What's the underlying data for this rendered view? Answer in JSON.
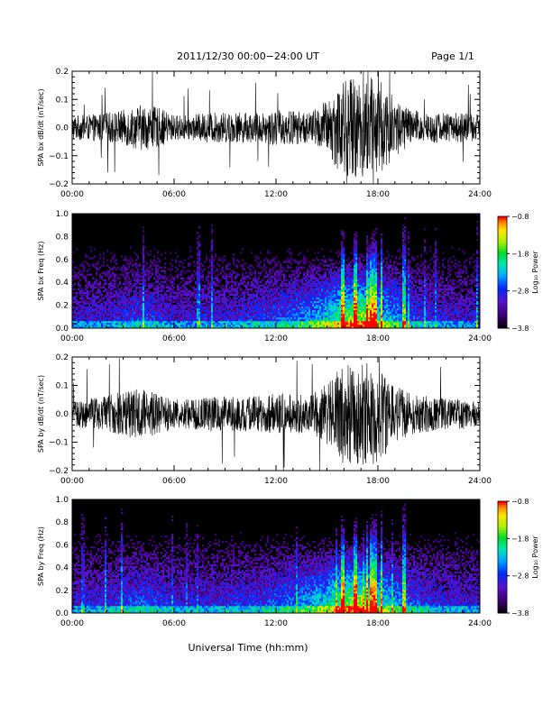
{
  "header": {
    "title": "2011/12/30  00:00−24:00 UT",
    "page": "Page 1/1"
  },
  "footer": {
    "xlabel": "Universal Time (hh:mm)"
  },
  "chart_data": [
    {
      "type": "line",
      "panel": "bx-dbdt",
      "ylabel": "SPA bx dB/dt (nT/sec)",
      "xlim": [
        "00:00",
        "24:00"
      ],
      "ylim": [
        -0.2,
        0.2
      ],
      "x_ticks": [
        "00:00",
        "06:00",
        "12:00",
        "18:00",
        "24:00"
      ],
      "y_ticks": [
        "0.2",
        "0.1",
        "0.0",
        "−0.1",
        "−0.2"
      ],
      "series": [
        {
          "x_hours": [
            0,
            1,
            2,
            3,
            4,
            5,
            6,
            7,
            8,
            9,
            10,
            11,
            12,
            13,
            14,
            15,
            16,
            17,
            18,
            19,
            20,
            21,
            22,
            23,
            24
          ],
          "amplitude": [
            0.05,
            0.05,
            0.06,
            0.07,
            0.09,
            0.08,
            0.05,
            0.05,
            0.06,
            0.06,
            0.06,
            0.06,
            0.07,
            0.07,
            0.06,
            0.11,
            0.2,
            0.2,
            0.2,
            0.12,
            0.07,
            0.06,
            0.06,
            0.06,
            0.05
          ],
          "color": "#000000"
        }
      ]
    },
    {
      "type": "heatmap",
      "panel": "bx-spectrogram",
      "ylabel": "SPA bx Freq (Hz)",
      "xlim": [
        "00:00",
        "24:00"
      ],
      "ylim": [
        0.0,
        1.0
      ],
      "x_ticks": [
        "00:00",
        "06:00",
        "12:00",
        "18:00",
        "24:00"
      ],
      "y_ticks": [
        "1.0",
        "0.8",
        "0.6",
        "0.4",
        "0.2",
        "0.0"
      ],
      "colorbar": {
        "label": "Log₁₀ Power",
        "range": [
          -3.8,
          -0.8
        ],
        "ticks": [
          "−0.8",
          "−1.8",
          "−2.8",
          "−3.8"
        ]
      },
      "activity_by_hour": [
        0.3,
        0.3,
        0.32,
        0.38,
        0.42,
        0.38,
        0.3,
        0.3,
        0.33,
        0.33,
        0.35,
        0.38,
        0.42,
        0.48,
        0.56,
        0.68,
        0.85,
        0.95,
        0.72,
        0.55,
        0.42,
        0.35,
        0.32,
        0.3,
        0.3
      ]
    },
    {
      "type": "line",
      "panel": "by-dbdt",
      "ylabel": "SPA by dB/dt (nT/sec)",
      "xlim": [
        "00:00",
        "24:00"
      ],
      "ylim": [
        -0.2,
        0.2
      ],
      "x_ticks": [
        "00:00",
        "06:00",
        "12:00",
        "18:00",
        "24:00"
      ],
      "y_ticks": [
        "0.2",
        "0.1",
        "0.0",
        "−0.1",
        "−0.2"
      ],
      "series": [
        {
          "x_hours": [
            0,
            1,
            2,
            3,
            4,
            5,
            6,
            7,
            8,
            9,
            10,
            11,
            12,
            13,
            14,
            15,
            16,
            17,
            18,
            19,
            20,
            21,
            22,
            23,
            24
          ],
          "amplitude": [
            0.05,
            0.06,
            0.07,
            0.09,
            0.1,
            0.08,
            0.06,
            0.06,
            0.07,
            0.07,
            0.07,
            0.07,
            0.08,
            0.08,
            0.07,
            0.12,
            0.2,
            0.2,
            0.2,
            0.12,
            0.08,
            0.07,
            0.06,
            0.06,
            0.05
          ],
          "color": "#000000"
        }
      ]
    },
    {
      "type": "heatmap",
      "panel": "by-spectrogram",
      "ylabel": "SPA by Freq (Hz)",
      "xlim": [
        "00:00",
        "24:00"
      ],
      "ylim": [
        0.0,
        1.0
      ],
      "x_ticks": [
        "00:00",
        "06:00",
        "12:00",
        "18:00",
        "24:00"
      ],
      "y_ticks": [
        "1.0",
        "0.8",
        "0.6",
        "0.4",
        "0.2",
        "0.0"
      ],
      "colorbar": {
        "label": "Log₁₀ Power",
        "range": [
          -3.8,
          -0.8
        ],
        "ticks": [
          "−0.8",
          "−1.8",
          "−2.8",
          "−3.8"
        ]
      },
      "activity_by_hour": [
        0.32,
        0.33,
        0.35,
        0.4,
        0.44,
        0.4,
        0.33,
        0.33,
        0.36,
        0.36,
        0.38,
        0.4,
        0.45,
        0.5,
        0.58,
        0.7,
        0.87,
        0.96,
        0.74,
        0.56,
        0.44,
        0.37,
        0.34,
        0.32,
        0.32
      ]
    }
  ]
}
